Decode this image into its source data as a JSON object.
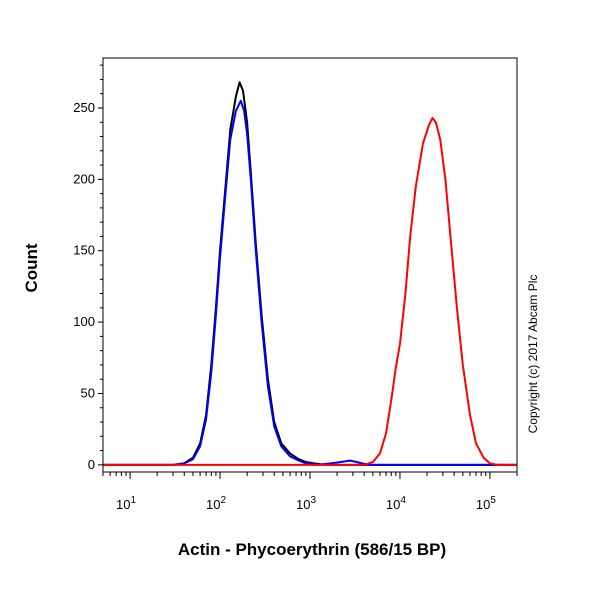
{
  "chart_data": {
    "type": "line",
    "title": "",
    "xlabel": "Actin - Phycoerythrin (586/15 BP)",
    "ylabel": "Count",
    "x_scale": "log",
    "xlim": [
      5,
      200000
    ],
    "ylim": [
      -5,
      285
    ],
    "x_ticks": [
      {
        "value": 10,
        "base": "10",
        "exp": "1"
      },
      {
        "value": 100,
        "base": "10",
        "exp": "2"
      },
      {
        "value": 1000,
        "base": "10",
        "exp": "3"
      },
      {
        "value": 10000,
        "base": "10",
        "exp": "4"
      },
      {
        "value": 100000,
        "base": "10",
        "exp": "5"
      }
    ],
    "y_ticks": [
      0,
      50,
      100,
      150,
      200,
      250
    ],
    "grid": false,
    "legend": "none",
    "series": [
      {
        "color": "#000000",
        "points": [
          [
            5,
            0
          ],
          [
            30,
            0
          ],
          [
            40,
            1
          ],
          [
            50,
            5
          ],
          [
            60,
            15
          ],
          [
            70,
            35
          ],
          [
            80,
            70
          ],
          [
            90,
            110
          ],
          [
            100,
            150
          ],
          [
            115,
            195
          ],
          [
            130,
            235
          ],
          [
            150,
            258
          ],
          [
            165,
            268
          ],
          [
            180,
            262
          ],
          [
            200,
            240
          ],
          [
            220,
            205
          ],
          [
            250,
            155
          ],
          [
            290,
            105
          ],
          [
            340,
            60
          ],
          [
            400,
            30
          ],
          [
            480,
            15
          ],
          [
            600,
            8
          ],
          [
            750,
            4
          ],
          [
            900,
            2
          ],
          [
            1100,
            1
          ],
          [
            1500,
            0
          ],
          [
            200000,
            0
          ]
        ]
      },
      {
        "color": "#0000ff",
        "points": [
          [
            5,
            0
          ],
          [
            30,
            0
          ],
          [
            40,
            1
          ],
          [
            50,
            4
          ],
          [
            60,
            13
          ],
          [
            70,
            32
          ],
          [
            80,
            65
          ],
          [
            90,
            105
          ],
          [
            100,
            145
          ],
          [
            115,
            190
          ],
          [
            130,
            228
          ],
          [
            150,
            248
          ],
          [
            170,
            255
          ],
          [
            185,
            248
          ],
          [
            200,
            232
          ],
          [
            220,
            200
          ],
          [
            250,
            150
          ],
          [
            290,
            100
          ],
          [
            340,
            55
          ],
          [
            400,
            27
          ],
          [
            480,
            13
          ],
          [
            600,
            6
          ],
          [
            750,
            3
          ],
          [
            900,
            1
          ],
          [
            1200,
            0
          ],
          [
            1700,
            1
          ],
          [
            2200,
            2
          ],
          [
            2800,
            3
          ],
          [
            3300,
            2
          ],
          [
            3800,
            1
          ],
          [
            4500,
            0
          ],
          [
            200000,
            0
          ]
        ]
      },
      {
        "color": "#ff0000",
        "points": [
          [
            5,
            0
          ],
          [
            4000,
            0
          ],
          [
            5000,
            2
          ],
          [
            6000,
            8
          ],
          [
            7000,
            22
          ],
          [
            8000,
            45
          ],
          [
            9000,
            68
          ],
          [
            10000,
            85
          ],
          [
            11500,
            120
          ],
          [
            13000,
            160
          ],
          [
            15000,
            195
          ],
          [
            18000,
            225
          ],
          [
            21000,
            238
          ],
          [
            23000,
            243
          ],
          [
            25000,
            240
          ],
          [
            28000,
            228
          ],
          [
            32000,
            200
          ],
          [
            37000,
            155
          ],
          [
            43000,
            110
          ],
          [
            50000,
            70
          ],
          [
            60000,
            35
          ],
          [
            70000,
            15
          ],
          [
            85000,
            5
          ],
          [
            100000,
            1
          ],
          [
            120000,
            0
          ],
          [
            200000,
            0
          ]
        ]
      }
    ]
  },
  "watermark": "Copyright (c) 2017 Abcam Plc"
}
